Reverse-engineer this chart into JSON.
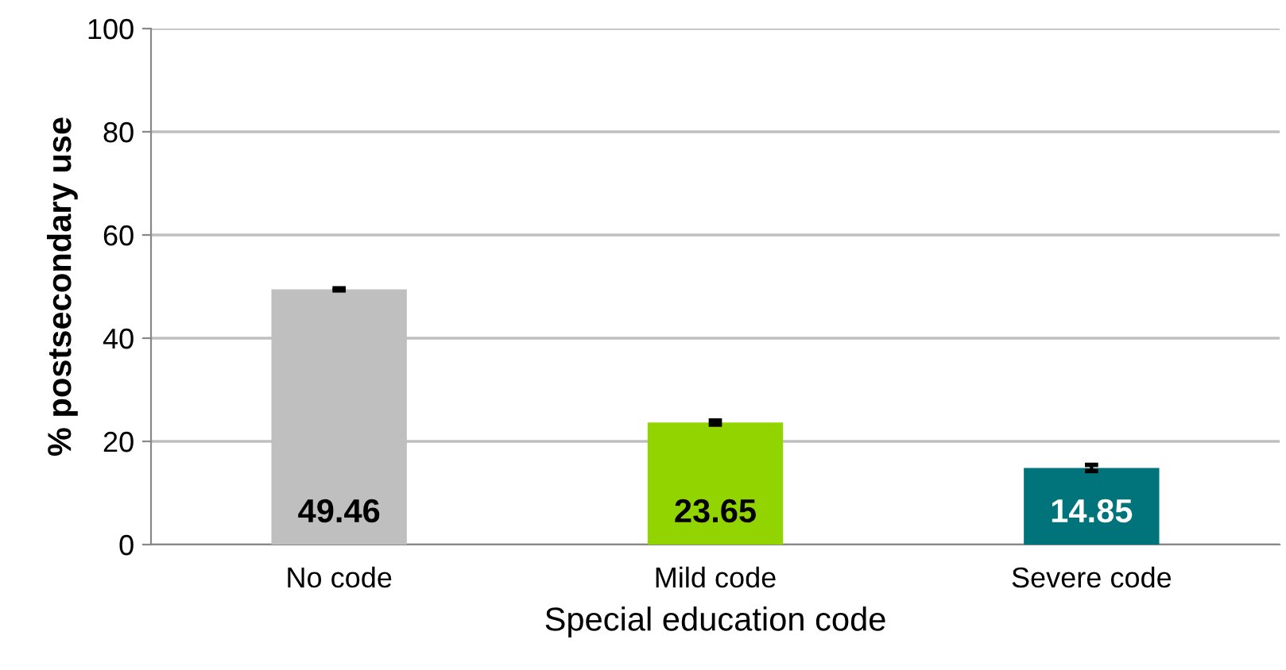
{
  "chart_data": {
    "type": "bar",
    "xlabel": "Special education code",
    "ylabel": "% postsecondary use",
    "categories": [
      "No code",
      "Mild code",
      "Severe code"
    ],
    "values": [
      49.46,
      23.65,
      14.85
    ],
    "colors": [
      "#bfbfbf",
      "#92d400",
      "#00747a"
    ],
    "errors": [
      0.2,
      0.4,
      0.6
    ],
    "ylim": [
      0,
      100
    ],
    "yticks": [
      0,
      20,
      40,
      60,
      80,
      100
    ],
    "grid": "y",
    "data_labels": true
  }
}
